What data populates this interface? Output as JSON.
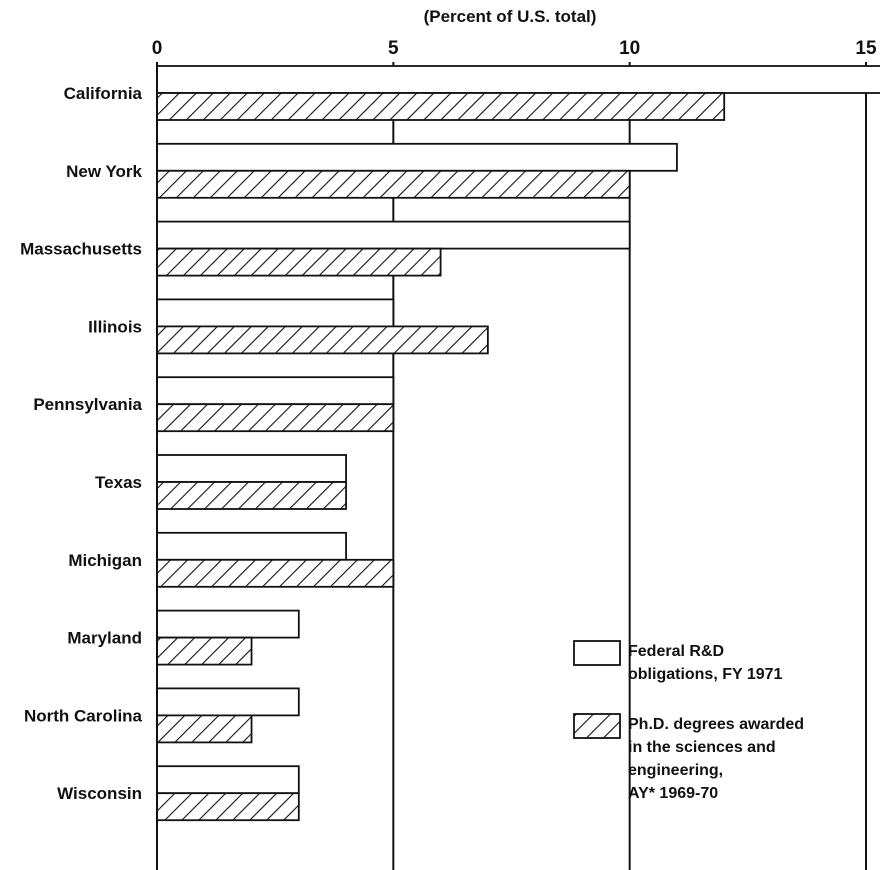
{
  "chart_data": {
    "type": "bar",
    "orientation": "horizontal",
    "axis_title": "(Percent of U.S. total)",
    "x_range": [
      0,
      15
    ],
    "x_ticks": [
      0,
      5,
      10,
      15
    ],
    "grid": "vertical lines at 5, 10, 15",
    "legend_position": "bottom-right",
    "categories": [
      "California",
      "New York",
      "Massachusetts",
      "Illinois",
      "Pennsylvania",
      "Texas",
      "Michigan",
      "Maryland",
      "North Carolina",
      "Wisconsin"
    ],
    "series": [
      {
        "name": "Federal R&D obligations, FY 1971",
        "pattern": "plain",
        "values": [
          15.5,
          11,
          10,
          5,
          5,
          4,
          4,
          3,
          3,
          3
        ]
      },
      {
        "name": "Ph.D. degrees awarded in the sciences and engineering, AY* 1969-70",
        "pattern": "hatched",
        "values": [
          12,
          10,
          6,
          7,
          5,
          4,
          5,
          2,
          2,
          3
        ]
      }
    ],
    "legend": [
      {
        "lines": [
          "Federal R&D",
          "obligations, FY 1971"
        ]
      },
      {
        "lines": [
          "Ph.D. degrees awarded",
          "in the sciences and",
          "engineering,",
          "AY* 1969-70"
        ]
      }
    ],
    "colors": {
      "bar_fill": "#ffffff",
      "stroke": "#111111",
      "hatch": "#111111"
    }
  }
}
